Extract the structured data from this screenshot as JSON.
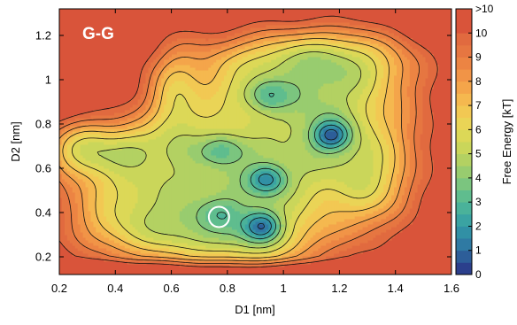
{
  "chart_data": {
    "type": "heatmap",
    "subtype": "filled-contour free energy landscape",
    "panel_label": "G-G",
    "xlabel": "D1 [nm]",
    "ylabel": "D2 [nm]",
    "xlim": [
      0.2,
      1.6
    ],
    "ylim": [
      0.12,
      1.32
    ],
    "x_ticks": [
      0.2,
      0.4,
      0.6,
      0.8,
      1,
      1.2,
      1.4,
      1.6
    ],
    "x_tick_labels": [
      "0.2",
      "0.4",
      "0.6",
      "0.8",
      "1",
      "1.2",
      "1.4",
      "1.6"
    ],
    "y_ticks": [
      0.2,
      0.4,
      0.6,
      0.8,
      1,
      1.2
    ],
    "y_tick_labels": [
      "0.2",
      "0.4",
      "0.6",
      "0.8",
      "1",
      "1.2"
    ],
    "colorbar": {
      "label": "Free Energy [kT]",
      "range": [
        0,
        11
      ],
      "ticks": [
        0,
        1,
        2,
        3,
        4,
        5,
        6,
        7,
        8,
        9,
        10,
        11
      ],
      "tick_labels": [
        "0",
        "1",
        "2",
        "3",
        "4",
        "5",
        "6",
        "7",
        "8",
        "9",
        "10",
        ">10"
      ],
      "levels": [
        {
          "from": 0,
          "to": 0.5,
          "color": "#2b3f8c"
        },
        {
          "from": 0.5,
          "to": 1,
          "color": "#2d5e99"
        },
        {
          "from": 1,
          "to": 1.5,
          "color": "#2f7aa3"
        },
        {
          "from": 1.5,
          "to": 2,
          "color": "#3190a5"
        },
        {
          "from": 2,
          "to": 2.5,
          "color": "#3aa3a2"
        },
        {
          "from": 2.5,
          "to": 3,
          "color": "#4ab29a"
        },
        {
          "from": 3,
          "to": 3.5,
          "color": "#5fbd8e"
        },
        {
          "from": 3.5,
          "to": 4,
          "color": "#7bc57f"
        },
        {
          "from": 4,
          "to": 4.5,
          "color": "#98cc6f"
        },
        {
          "from": 4.5,
          "to": 5,
          "color": "#b3d162"
        },
        {
          "from": 5,
          "to": 5.5,
          "color": "#cad65a"
        },
        {
          "from": 5.5,
          "to": 6,
          "color": "#dcd857"
        },
        {
          "from": 6,
          "to": 6.5,
          "color": "#ead456"
        },
        {
          "from": 6.5,
          "to": 7,
          "color": "#f2c853"
        },
        {
          "from": 7,
          "to": 7.5,
          "color": "#f5b84f"
        },
        {
          "from": 7.5,
          "to": 8,
          "color": "#f4a54a"
        },
        {
          "from": 8,
          "to": 8.5,
          "color": "#f19447"
        },
        {
          "from": 8.5,
          "to": 9,
          "color": "#ec8443"
        },
        {
          "from": 9,
          "to": 9.5,
          "color": "#e67641"
        },
        {
          "from": 9.5,
          "to": 10,
          "color": "#e16a3f"
        },
        {
          "from": 10,
          "to": 11,
          "color": "#d9543a"
        }
      ]
    },
    "background_color": "#d9543a",
    "minima": [
      {
        "x": 1.17,
        "y": 0.75,
        "depth": 0.5
      },
      {
        "x": 0.92,
        "y": 0.34,
        "depth": 0.8
      },
      {
        "x": 0.94,
        "y": 0.55,
        "depth": 1.5
      },
      {
        "x": 0.78,
        "y": 0.68,
        "depth": 3.2
      },
      {
        "x": 0.95,
        "y": 0.93,
        "depth": 3.0
      },
      {
        "x": 0.53,
        "y": 0.38,
        "depth": 5.5
      },
      {
        "x": 0.32,
        "y": 0.68,
        "depth": 6.5
      }
    ],
    "annotations": [
      {
        "shape": "circle",
        "x": 0.77,
        "y": 0.38,
        "color": "#ffffff"
      }
    ]
  }
}
